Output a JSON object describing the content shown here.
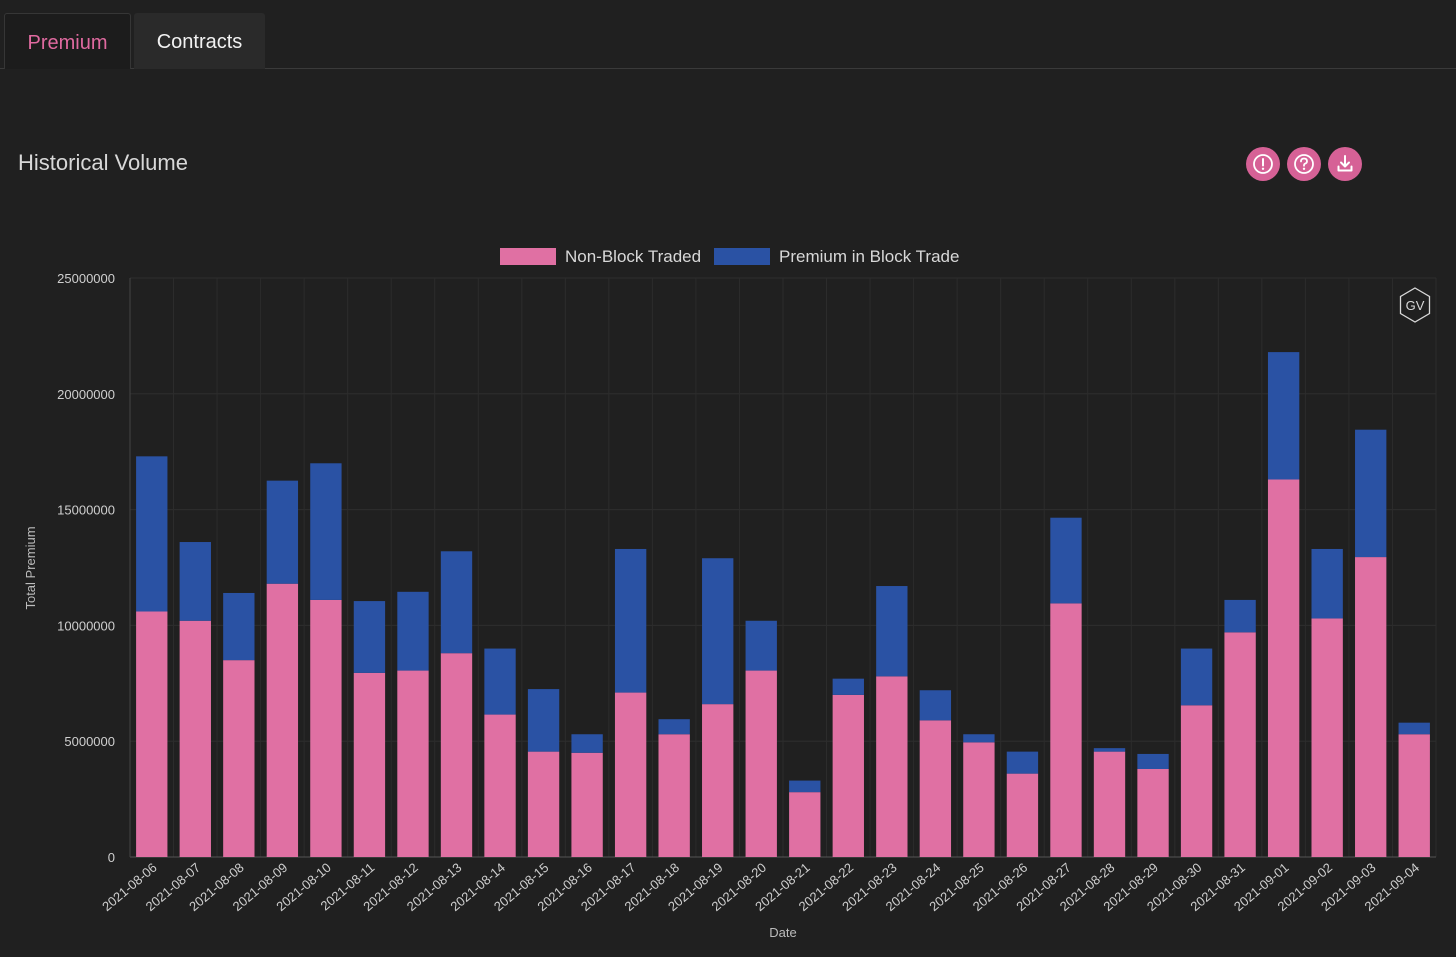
{
  "tabs": [
    {
      "label": "Premium",
      "active": true
    },
    {
      "label": "Contracts",
      "active": false
    }
  ],
  "header": {
    "title": "Historical Volume",
    "actions": [
      {
        "icon": "exclamation-circle-icon"
      },
      {
        "icon": "question-circle-icon"
      },
      {
        "icon": "download-icon"
      }
    ]
  },
  "colors": {
    "accent": "#e06aa0",
    "non_block": "#e070a3",
    "block": "#2a52a4",
    "background": "#202020"
  },
  "watermark": {
    "text": "GV"
  },
  "chart_data": {
    "type": "bar",
    "stacked": true,
    "xlabel": "Date",
    "ylabel": "Total Premium",
    "ylim": [
      0,
      25000000
    ],
    "yticks": [
      0,
      5000000,
      10000000,
      15000000,
      20000000,
      25000000
    ],
    "ytick_labels": [
      "0",
      "5000000",
      "10000000",
      "15000000",
      "20000000",
      "25000000"
    ],
    "legend_position": "top",
    "grid": true,
    "categories": [
      "2021-08-06",
      "2021-08-07",
      "2021-08-08",
      "2021-08-09",
      "2021-08-10",
      "2021-08-11",
      "2021-08-12",
      "2021-08-13",
      "2021-08-14",
      "2021-08-15",
      "2021-08-16",
      "2021-08-17",
      "2021-08-18",
      "2021-08-19",
      "2021-08-20",
      "2021-08-21",
      "2021-08-22",
      "2021-08-23",
      "2021-08-24",
      "2021-08-25",
      "2021-08-26",
      "2021-08-27",
      "2021-08-28",
      "2021-08-29",
      "2021-08-30",
      "2021-08-31",
      "2021-09-01",
      "2021-09-02",
      "2021-09-03",
      "2021-09-04"
    ],
    "series": [
      {
        "name": "Non-Block Traded",
        "color": "#e070a3",
        "values": [
          10600000,
          10200000,
          8500000,
          11800000,
          11100000,
          7950000,
          8050000,
          8800000,
          6150000,
          4550000,
          4500000,
          7100000,
          5300000,
          6600000,
          8050000,
          2800000,
          7000000,
          7800000,
          5900000,
          4950000,
          3600000,
          10950000,
          4550000,
          3800000,
          6550000,
          9700000,
          16300000,
          10300000,
          12950000,
          5300000
        ]
      },
      {
        "name": "Premium in Block Trade",
        "color": "#2a52a4",
        "values": [
          6700000,
          3400000,
          2900000,
          4450000,
          5900000,
          3100000,
          3400000,
          4400000,
          2850000,
          2700000,
          800000,
          6200000,
          650000,
          6300000,
          2150000,
          500000,
          700000,
          3900000,
          1300000,
          350000,
          950000,
          3700000,
          150000,
          650000,
          2450000,
          1400000,
          5500000,
          3000000,
          5500000,
          500000
        ]
      }
    ]
  }
}
